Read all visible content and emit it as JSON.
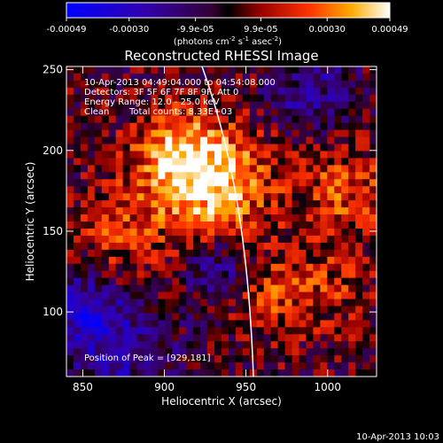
{
  "chart_data": {
    "type": "heatmap",
    "title": "Reconstructed RHESSI Image",
    "xlabel": "Heliocentric X (arcsec)",
    "ylabel": "Heliocentric Y (arcsec)",
    "xlim": [
      840,
      1030
    ],
    "ylim": [
      60,
      252
    ],
    "x_ticks": [
      "850",
      "900",
      "950",
      "1000"
    ],
    "y_ticks": [
      "100",
      "150",
      "200",
      "250"
    ],
    "colorbar": {
      "ticks": [
        "-0.00049",
        "-0.00030",
        "-9.9e-05",
        "9.9e-05",
        "0.00030",
        "0.00049"
      ],
      "units": "(photons cm",
      "units_sup1": "-2",
      "units_mid": " s",
      "units_sup2": "-1",
      "units_end": " asec",
      "units_sup3": "-2",
      "units_close": ")",
      "range": [
        -0.00049,
        0.00049
      ]
    },
    "annotations": {
      "time_range": "10-Apr-2013 04:49:04.000 to 04:54:08.000",
      "detectors": "Detectors: 3F 5F 6F 7F 8F 9F, Att 0",
      "energy": "Energy Range: 12.0 - 25.0 keV",
      "clean": "Clean",
      "counts": "Total counts: 8.33E+03",
      "peak": "Position of Peak = [929,181]"
    },
    "peak_position": [
      929,
      181
    ],
    "footer_timestamp": "10-Apr-2013 10:03",
    "colors": {
      "background": "#000000",
      "axes": "#ffffff",
      "limb": "#ffffff"
    }
  }
}
